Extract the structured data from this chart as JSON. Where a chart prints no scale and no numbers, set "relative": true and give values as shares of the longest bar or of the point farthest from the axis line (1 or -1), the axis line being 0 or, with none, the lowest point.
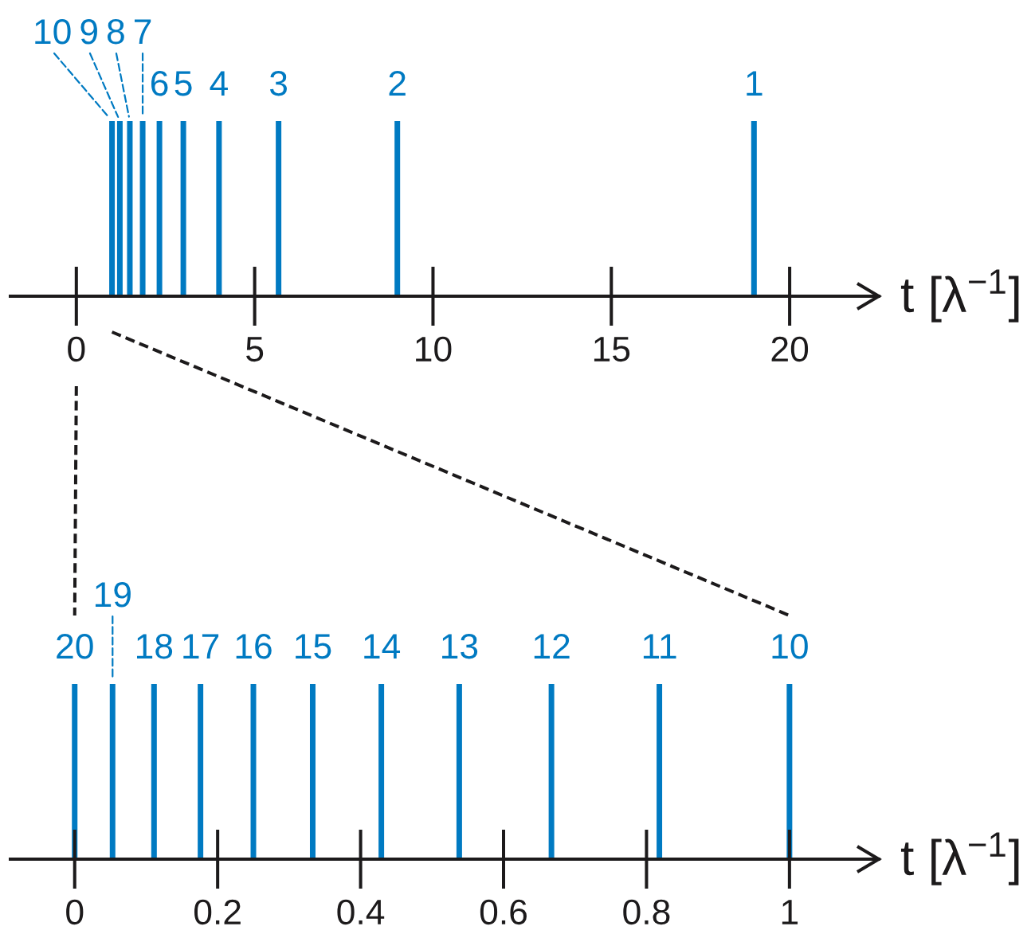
{
  "chart_data": [
    {
      "type": "bar",
      "x": [
        1,
        1.22,
        1.5,
        1.86,
        2.33,
        3,
        4,
        5.67,
        9,
        19
      ],
      "values": [
        1,
        1,
        1,
        1,
        1,
        1,
        1,
        1,
        1,
        1
      ],
      "relative": true,
      "color": "#007ac2",
      "xlim": [
        -1.85,
        22.5
      ],
      "xticks": [
        0,
        5,
        10,
        15,
        20
      ],
      "xlabel": "t [λ$^{−1}$]",
      "tick_labels": "x",
      "annotations": [
        {
          "text": "10",
          "x": 1,
          "y": 1
        },
        {
          "text": "9",
          "x": 1.22,
          "y": 1
        },
        {
          "text": "8",
          "x": 1.5,
          "y": 1
        },
        {
          "text": "7",
          "x": 1.86,
          "y": 1
        },
        {
          "text": "6",
          "x": 2.33,
          "y": 1
        },
        {
          "text": "5",
          "x": 3,
          "y": 1
        },
        {
          "text": "4",
          "x": 4,
          "y": 1
        },
        {
          "text": "3",
          "x": 5.67,
          "y": 1
        },
        {
          "text": "2",
          "x": 9,
          "y": 1
        },
        {
          "text": "1",
          "x": 19,
          "y": 1
        }
      ]
    },
    {
      "type": "bar",
      "x": [
        0,
        0.053,
        0.111,
        0.176,
        0.25,
        0.333,
        0.429,
        0.538,
        0.667,
        0.818,
        1
      ],
      "values": [
        1,
        1,
        1,
        1,
        1,
        1,
        1,
        1,
        1,
        1,
        1
      ],
      "relative": true,
      "color": "#007ac2",
      "xlim": [
        -0.09,
        1.125
      ],
      "xticks": [
        0,
        0.2,
        0.4,
        0.6,
        0.8,
        1
      ],
      "xlabel": "t [λ$^{−1}$]",
      "tick_labels": "x",
      "annotations": [
        {
          "text": "20",
          "x": 0,
          "y": 1
        },
        {
          "text": "19",
          "x": 0.053,
          "y": 1
        },
        {
          "text": "18",
          "x": 0.111,
          "y": 1
        },
        {
          "text": "17",
          "x": 0.176,
          "y": 1
        },
        {
          "text": "16",
          "x": 0.25,
          "y": 1
        },
        {
          "text": "15",
          "x": 0.333,
          "y": 1
        },
        {
          "text": "14",
          "x": 0.429,
          "y": 1
        },
        {
          "text": "13",
          "x": 0.538,
          "y": 1
        },
        {
          "text": "12",
          "x": 0.667,
          "y": 1
        },
        {
          "text": "11",
          "x": 0.818,
          "y": 1
        },
        {
          "text": "10",
          "x": 1,
          "y": 1
        }
      ]
    }
  ]
}
